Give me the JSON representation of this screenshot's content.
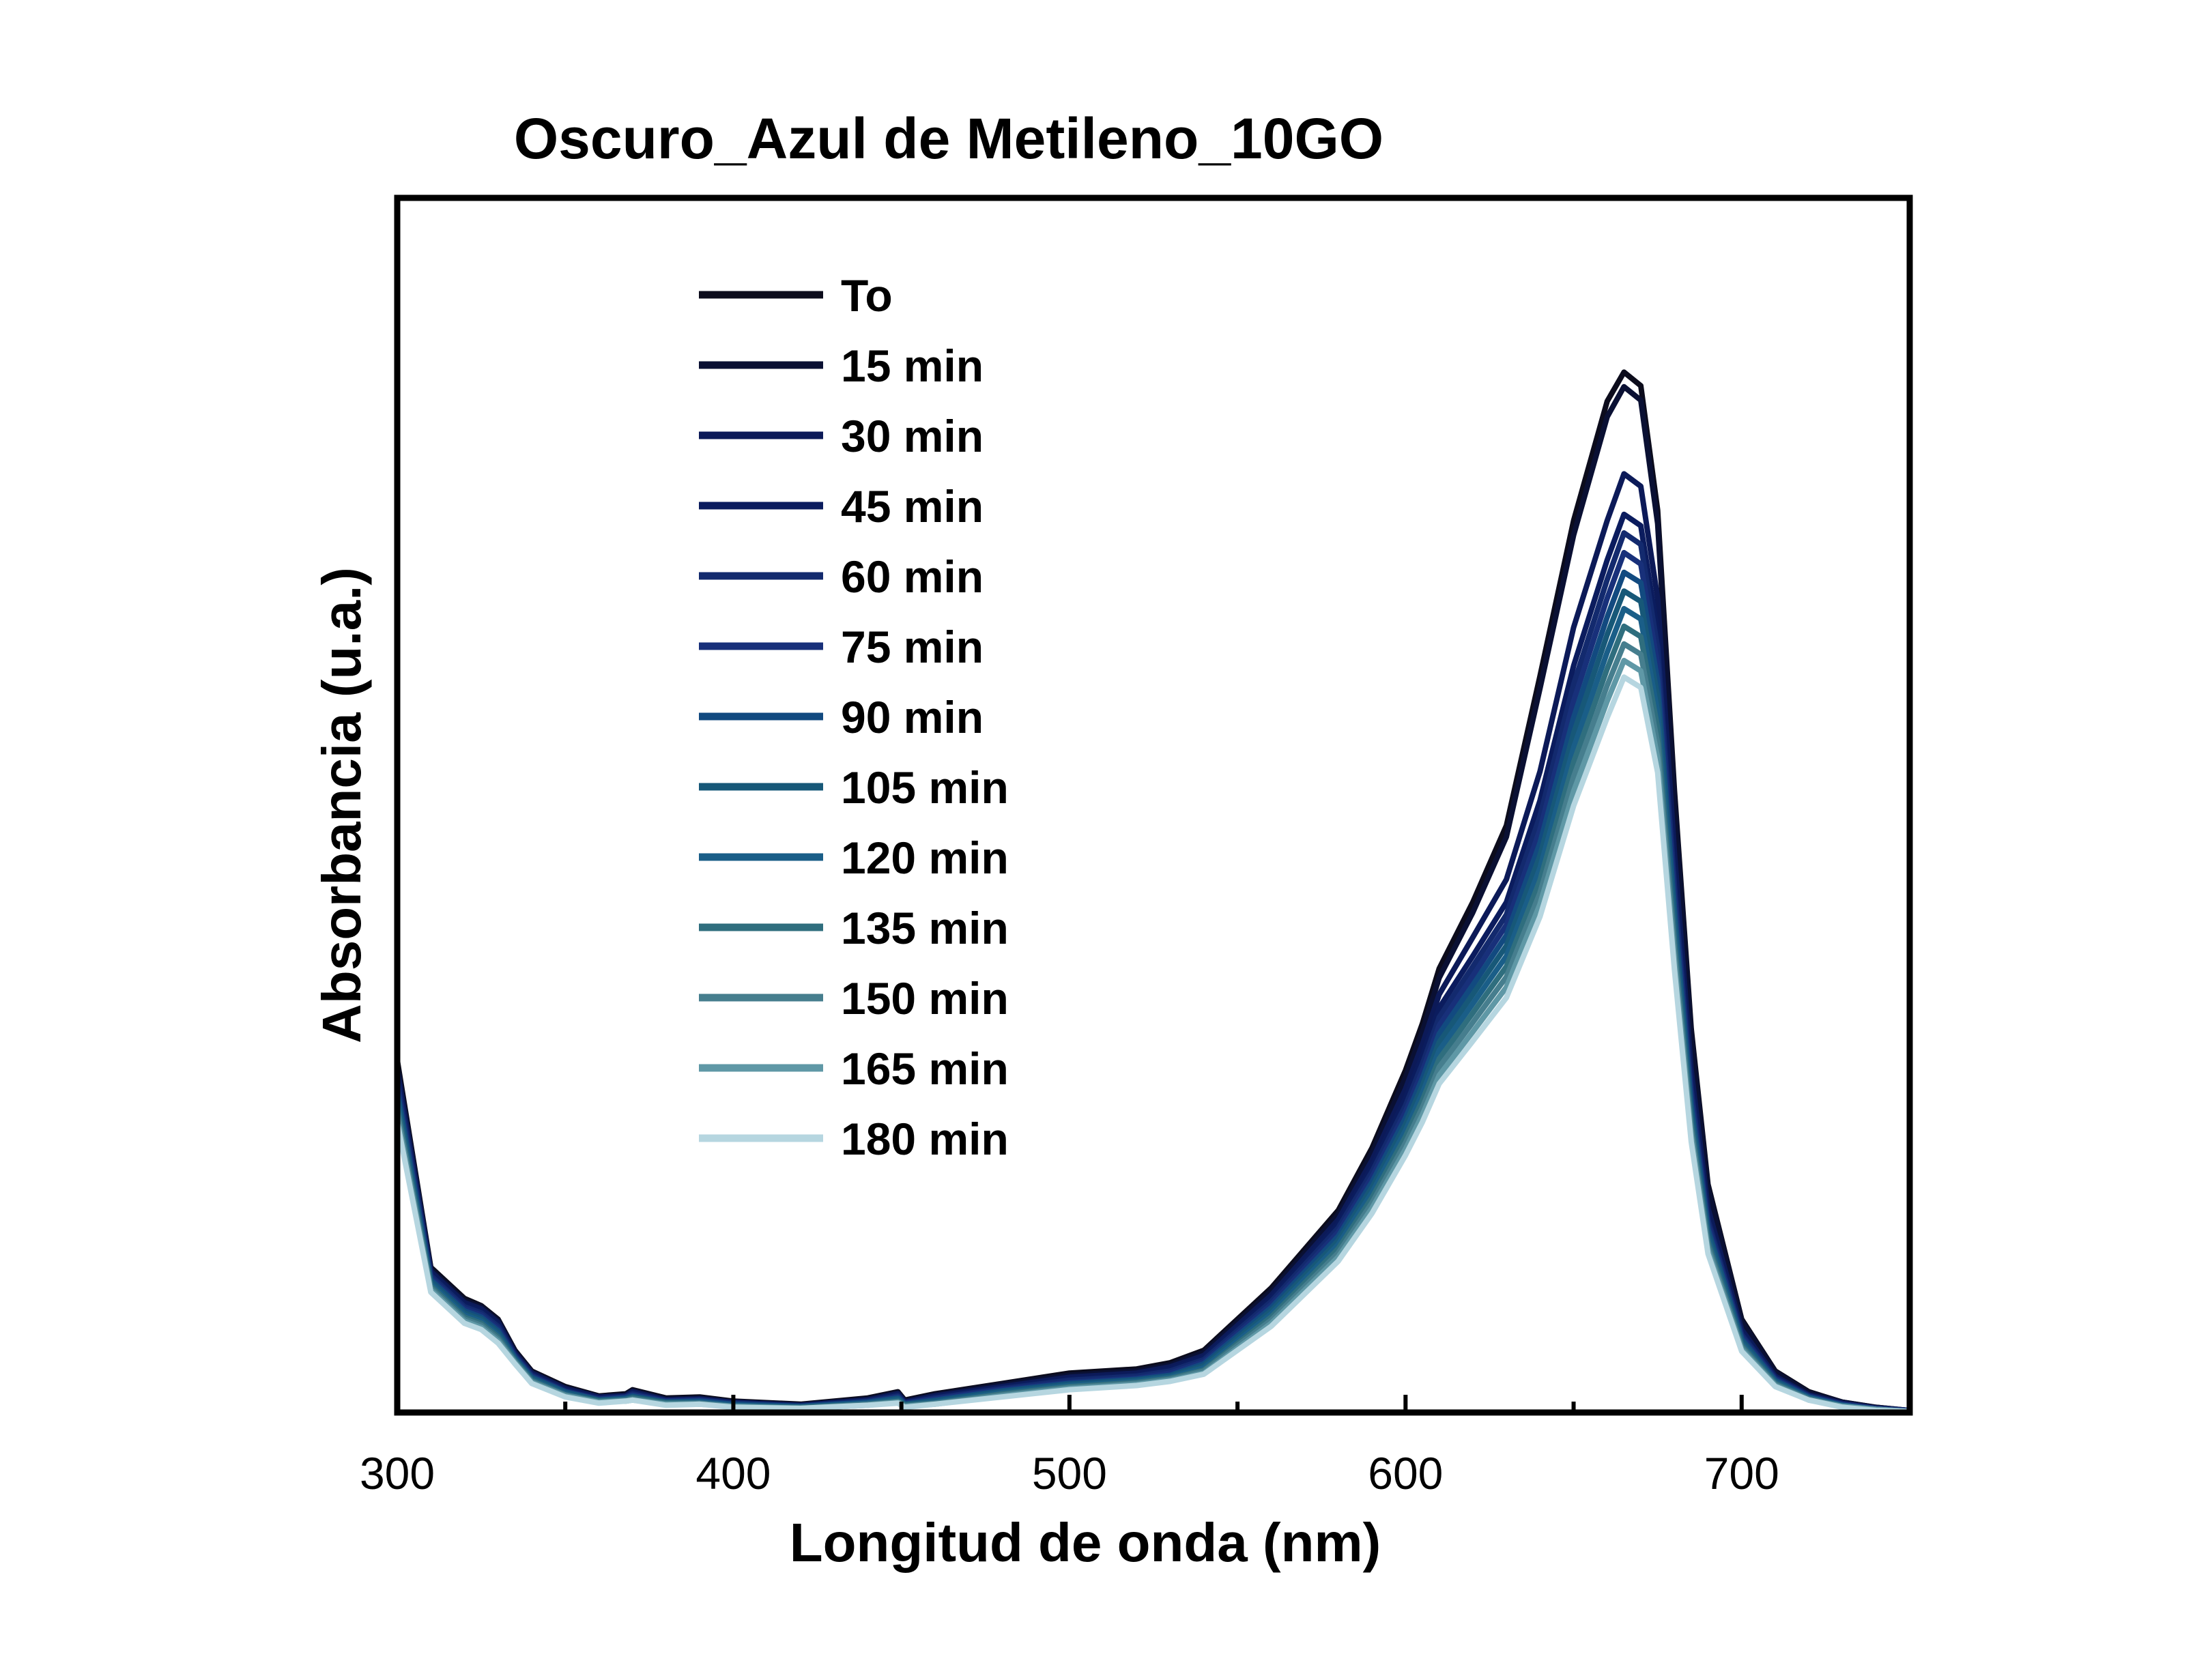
{
  "chart_data": {
    "type": "line",
    "title": "Oscuro_Azul de Metileno_10GO",
    "xlabel": "Longitud de onda (nm)",
    "ylabel": "Absorbancia (u.a.)",
    "xlim": [
      300,
      750
    ],
    "ylim": [
      0,
      1.0
    ],
    "x_ticks": [
      300,
      400,
      500,
      600,
      700
    ],
    "y_ticks_labeled": false,
    "grid": false,
    "legend_position": "top-left",
    "x": [
      300,
      310,
      320,
      325,
      330,
      335,
      340,
      350,
      360,
      368,
      370,
      380,
      390,
      400,
      420,
      440,
      449,
      451,
      460,
      480,
      500,
      520,
      530,
      540,
      560,
      580,
      590,
      600,
      605,
      610,
      620,
      630,
      640,
      650,
      660,
      665,
      670,
      675,
      680,
      685,
      690,
      700,
      710,
      720,
      730,
      740,
      750
    ],
    "series": [
      {
        "name": "To",
        "color": "#0c0c1c",
        "values": [
          0.34,
          0.14,
          0.11,
          0.103,
          0.09,
          0.06,
          0.04,
          0.025,
          0.016,
          0.018,
          0.022,
          0.014,
          0.015,
          0.011,
          0.008,
          0.014,
          0.02,
          0.012,
          0.018,
          0.028,
          0.038,
          0.042,
          0.048,
          0.06,
          0.12,
          0.195,
          0.255,
          0.33,
          0.375,
          0.428,
          0.492,
          0.566,
          0.71,
          0.86,
          0.975,
          1.003,
          0.99,
          0.87,
          0.6,
          0.37,
          0.22,
          0.09,
          0.04,
          0.02,
          0.01,
          0.005,
          0.002
        ]
      },
      {
        "name": "15 min",
        "color": "#0a1033",
        "values": [
          0.335,
          0.138,
          0.108,
          0.102,
          0.089,
          0.059,
          0.039,
          0.024,
          0.015,
          0.017,
          0.021,
          0.013,
          0.014,
          0.01,
          0.007,
          0.013,
          0.019,
          0.011,
          0.017,
          0.027,
          0.036,
          0.04,
          0.046,
          0.058,
          0.117,
          0.191,
          0.25,
          0.323,
          0.367,
          0.419,
          0.482,
          0.555,
          0.698,
          0.846,
          0.96,
          0.989,
          0.976,
          0.857,
          0.59,
          0.363,
          0.216,
          0.088,
          0.039,
          0.019,
          0.01,
          0.005,
          0.002
        ]
      },
      {
        "name": "30 min",
        "color": "#0c1a58",
        "values": [
          0.33,
          0.136,
          0.106,
          0.1,
          0.087,
          0.057,
          0.038,
          0.023,
          0.015,
          0.016,
          0.02,
          0.012,
          0.013,
          0.01,
          0.007,
          0.012,
          0.018,
          0.01,
          0.016,
          0.025,
          0.034,
          0.038,
          0.044,
          0.055,
          0.113,
          0.186,
          0.243,
          0.312,
          0.355,
          0.403,
          0.458,
          0.514,
          0.618,
          0.757,
          0.86,
          0.905,
          0.893,
          0.785,
          0.54,
          0.33,
          0.197,
          0.08,
          0.035,
          0.017,
          0.009,
          0.004,
          0.002
        ]
      },
      {
        "name": "45 min",
        "color": "#0b1c5e",
        "values": [
          0.325,
          0.134,
          0.104,
          0.098,
          0.085,
          0.056,
          0.037,
          0.022,
          0.014,
          0.016,
          0.019,
          0.012,
          0.013,
          0.009,
          0.007,
          0.012,
          0.017,
          0.01,
          0.015,
          0.024,
          0.032,
          0.036,
          0.042,
          0.053,
          0.11,
          0.182,
          0.237,
          0.303,
          0.344,
          0.39,
          0.44,
          0.492,
          0.59,
          0.72,
          0.822,
          0.866,
          0.855,
          0.752,
          0.518,
          0.317,
          0.189,
          0.077,
          0.034,
          0.016,
          0.008,
          0.004,
          0.002
        ]
      },
      {
        "name": "60 min",
        "color": "#132a6e",
        "values": [
          0.32,
          0.132,
          0.102,
          0.096,
          0.083,
          0.055,
          0.036,
          0.021,
          0.013,
          0.015,
          0.018,
          0.011,
          0.012,
          0.009,
          0.006,
          0.011,
          0.016,
          0.009,
          0.014,
          0.023,
          0.031,
          0.035,
          0.04,
          0.051,
          0.107,
          0.178,
          0.232,
          0.296,
          0.336,
          0.381,
          0.43,
          0.48,
          0.575,
          0.702,
          0.803,
          0.848,
          0.837,
          0.737,
          0.508,
          0.311,
          0.185,
          0.075,
          0.033,
          0.016,
          0.008,
          0.004,
          0.002
        ]
      },
      {
        "name": "75 min",
        "color": "#18307a",
        "values": [
          0.315,
          0.13,
          0.1,
          0.094,
          0.081,
          0.054,
          0.035,
          0.02,
          0.013,
          0.015,
          0.017,
          0.011,
          0.012,
          0.008,
          0.006,
          0.01,
          0.015,
          0.009,
          0.013,
          0.022,
          0.029,
          0.033,
          0.038,
          0.049,
          0.104,
          0.174,
          0.227,
          0.29,
          0.329,
          0.373,
          0.421,
          0.47,
          0.562,
          0.686,
          0.785,
          0.829,
          0.818,
          0.721,
          0.497,
          0.304,
          0.181,
          0.073,
          0.032,
          0.015,
          0.008,
          0.004,
          0.002
        ]
      },
      {
        "name": "90 min",
        "color": "#124a80",
        "values": [
          0.31,
          0.128,
          0.098,
          0.092,
          0.079,
          0.053,
          0.034,
          0.02,
          0.012,
          0.014,
          0.016,
          0.01,
          0.011,
          0.008,
          0.006,
          0.01,
          0.014,
          0.008,
          0.012,
          0.021,
          0.028,
          0.032,
          0.036,
          0.047,
          0.101,
          0.17,
          0.222,
          0.284,
          0.322,
          0.365,
          0.412,
          0.46,
          0.549,
          0.67,
          0.767,
          0.81,
          0.8,
          0.705,
          0.486,
          0.297,
          0.177,
          0.071,
          0.031,
          0.015,
          0.007,
          0.003,
          0.001
        ]
      },
      {
        "name": "105 min",
        "color": "#175878",
        "values": [
          0.305,
          0.126,
          0.096,
          0.09,
          0.077,
          0.052,
          0.033,
          0.019,
          0.012,
          0.013,
          0.015,
          0.01,
          0.01,
          0.007,
          0.005,
          0.009,
          0.013,
          0.008,
          0.011,
          0.02,
          0.027,
          0.031,
          0.035,
          0.045,
          0.098,
          0.166,
          0.217,
          0.278,
          0.315,
          0.357,
          0.403,
          0.45,
          0.537,
          0.655,
          0.75,
          0.792,
          0.782,
          0.69,
          0.476,
          0.291,
          0.173,
          0.069,
          0.03,
          0.014,
          0.007,
          0.003,
          0.001
        ]
      },
      {
        "name": "120 min",
        "color": "#1a5e88",
        "values": [
          0.3,
          0.124,
          0.094,
          0.088,
          0.075,
          0.051,
          0.032,
          0.018,
          0.011,
          0.013,
          0.014,
          0.009,
          0.01,
          0.007,
          0.005,
          0.009,
          0.012,
          0.007,
          0.01,
          0.019,
          0.026,
          0.03,
          0.034,
          0.043,
          0.095,
          0.162,
          0.212,
          0.272,
          0.308,
          0.349,
          0.394,
          0.44,
          0.525,
          0.641,
          0.733,
          0.775,
          0.765,
          0.675,
          0.466,
          0.285,
          0.169,
          0.067,
          0.029,
          0.014,
          0.007,
          0.003,
          0.001
        ]
      },
      {
        "name": "135 min",
        "color": "#2f6e7e",
        "values": [
          0.295,
          0.122,
          0.092,
          0.086,
          0.073,
          0.05,
          0.031,
          0.017,
          0.011,
          0.012,
          0.014,
          0.009,
          0.009,
          0.006,
          0.005,
          0.008,
          0.011,
          0.007,
          0.009,
          0.018,
          0.025,
          0.029,
          0.033,
          0.041,
          0.092,
          0.158,
          0.207,
          0.266,
          0.301,
          0.341,
          0.385,
          0.43,
          0.513,
          0.627,
          0.717,
          0.758,
          0.748,
          0.66,
          0.456,
          0.279,
          0.165,
          0.065,
          0.028,
          0.013,
          0.006,
          0.003,
          0.001
        ]
      },
      {
        "name": "150 min",
        "color": "#467e8e",
        "values": [
          0.29,
          0.12,
          0.09,
          0.084,
          0.071,
          0.049,
          0.03,
          0.017,
          0.01,
          0.012,
          0.013,
          0.008,
          0.009,
          0.006,
          0.004,
          0.008,
          0.01,
          0.006,
          0.009,
          0.017,
          0.024,
          0.028,
          0.032,
          0.04,
          0.089,
          0.154,
          0.202,
          0.26,
          0.294,
          0.333,
          0.376,
          0.42,
          0.501,
          0.613,
          0.701,
          0.741,
          0.731,
          0.645,
          0.446,
          0.273,
          0.161,
          0.063,
          0.027,
          0.013,
          0.006,
          0.003,
          0.001
        ]
      },
      {
        "name": "165 min",
        "color": "#5f98a6",
        "values": [
          0.285,
          0.118,
          0.088,
          0.082,
          0.069,
          0.048,
          0.029,
          0.016,
          0.01,
          0.011,
          0.012,
          0.008,
          0.008,
          0.006,
          0.004,
          0.007,
          0.01,
          0.006,
          0.008,
          0.016,
          0.023,
          0.027,
          0.031,
          0.038,
          0.086,
          0.15,
          0.197,
          0.254,
          0.287,
          0.325,
          0.367,
          0.41,
          0.49,
          0.599,
          0.686,
          0.725,
          0.715,
          0.631,
          0.436,
          0.267,
          0.157,
          0.061,
          0.026,
          0.012,
          0.006,
          0.003,
          0.001
        ]
      },
      {
        "name": "180 min",
        "color": "#b6d6e0",
        "values": [
          0.28,
          0.116,
          0.086,
          0.08,
          0.067,
          0.047,
          0.028,
          0.015,
          0.009,
          0.011,
          0.012,
          0.007,
          0.008,
          0.005,
          0.004,
          0.007,
          0.009,
          0.005,
          0.008,
          0.015,
          0.022,
          0.026,
          0.03,
          0.037,
          0.083,
          0.146,
          0.192,
          0.248,
          0.28,
          0.317,
          0.358,
          0.4,
          0.478,
          0.585,
          0.67,
          0.709,
          0.699,
          0.617,
          0.427,
          0.261,
          0.153,
          0.059,
          0.025,
          0.012,
          0.005,
          0.002,
          0.001
        ]
      }
    ]
  }
}
